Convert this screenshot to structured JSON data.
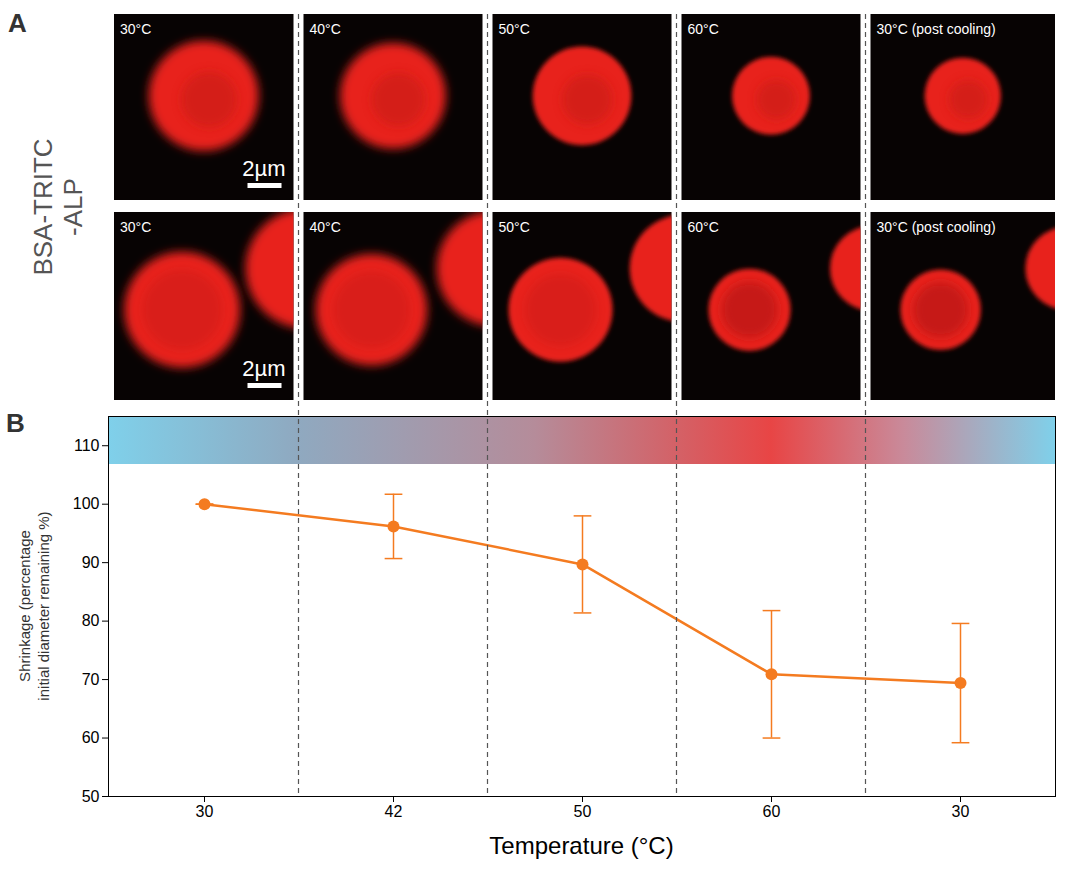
{
  "panel_a": {
    "letter": "A",
    "row_label": "BSA-TRITC -ALP",
    "rows": [
      {
        "labels": [
          "30°C",
          "40°C",
          "50°C",
          "60°C",
          "30°C (post cooling)"
        ],
        "scale_bar": "2µm"
      },
      {
        "labels": [
          "30°C",
          "40°C",
          "50°C",
          "60°C",
          "30°C (post cooling)"
        ],
        "scale_bar": "2µm"
      }
    ]
  },
  "panel_b": {
    "letter": "B"
  },
  "chart_data": {
    "type": "line",
    "x_label": "Temperature (°C)",
    "y_label": "Shrinkage (percentage initial diameter remaining %)",
    "categories": [
      "30",
      "42",
      "50",
      "60",
      "30"
    ],
    "values": [
      100,
      96.2,
      89.7,
      70.9,
      69.4
    ],
    "errors": [
      0,
      5.5,
      8.3,
      10.9,
      10.2
    ],
    "color": "#f47b20",
    "marker": "circle",
    "ylim": [
      50,
      115
    ],
    "yticks": [
      50,
      60,
      70,
      80,
      90,
      100,
      110
    ]
  }
}
